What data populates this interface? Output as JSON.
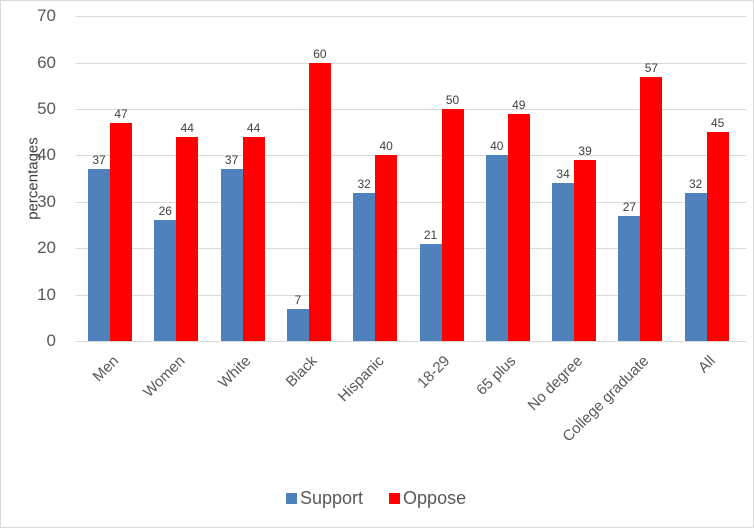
{
  "chart_data": {
    "type": "bar",
    "title": "",
    "xlabel": "",
    "ylabel": "percentages",
    "ylim": [
      0,
      70
    ],
    "yticks": [
      0,
      10,
      20,
      30,
      40,
      50,
      60,
      70
    ],
    "grid": true,
    "legend_position": "bottom",
    "categories": [
      "Men",
      "Women",
      "White",
      "Black",
      "Hispanic",
      "18-29",
      "65 plus",
      "No degree",
      "College graduate",
      "All"
    ],
    "series": [
      {
        "name": "Support",
        "color": "#4f81bd",
        "values": [
          37,
          26,
          37,
          7,
          32,
          21,
          40,
          34,
          27,
          32
        ]
      },
      {
        "name": "Oppose",
        "color": "#ff0000",
        "values": [
          47,
          44,
          44,
          60,
          40,
          50,
          49,
          39,
          57,
          45
        ]
      }
    ]
  }
}
